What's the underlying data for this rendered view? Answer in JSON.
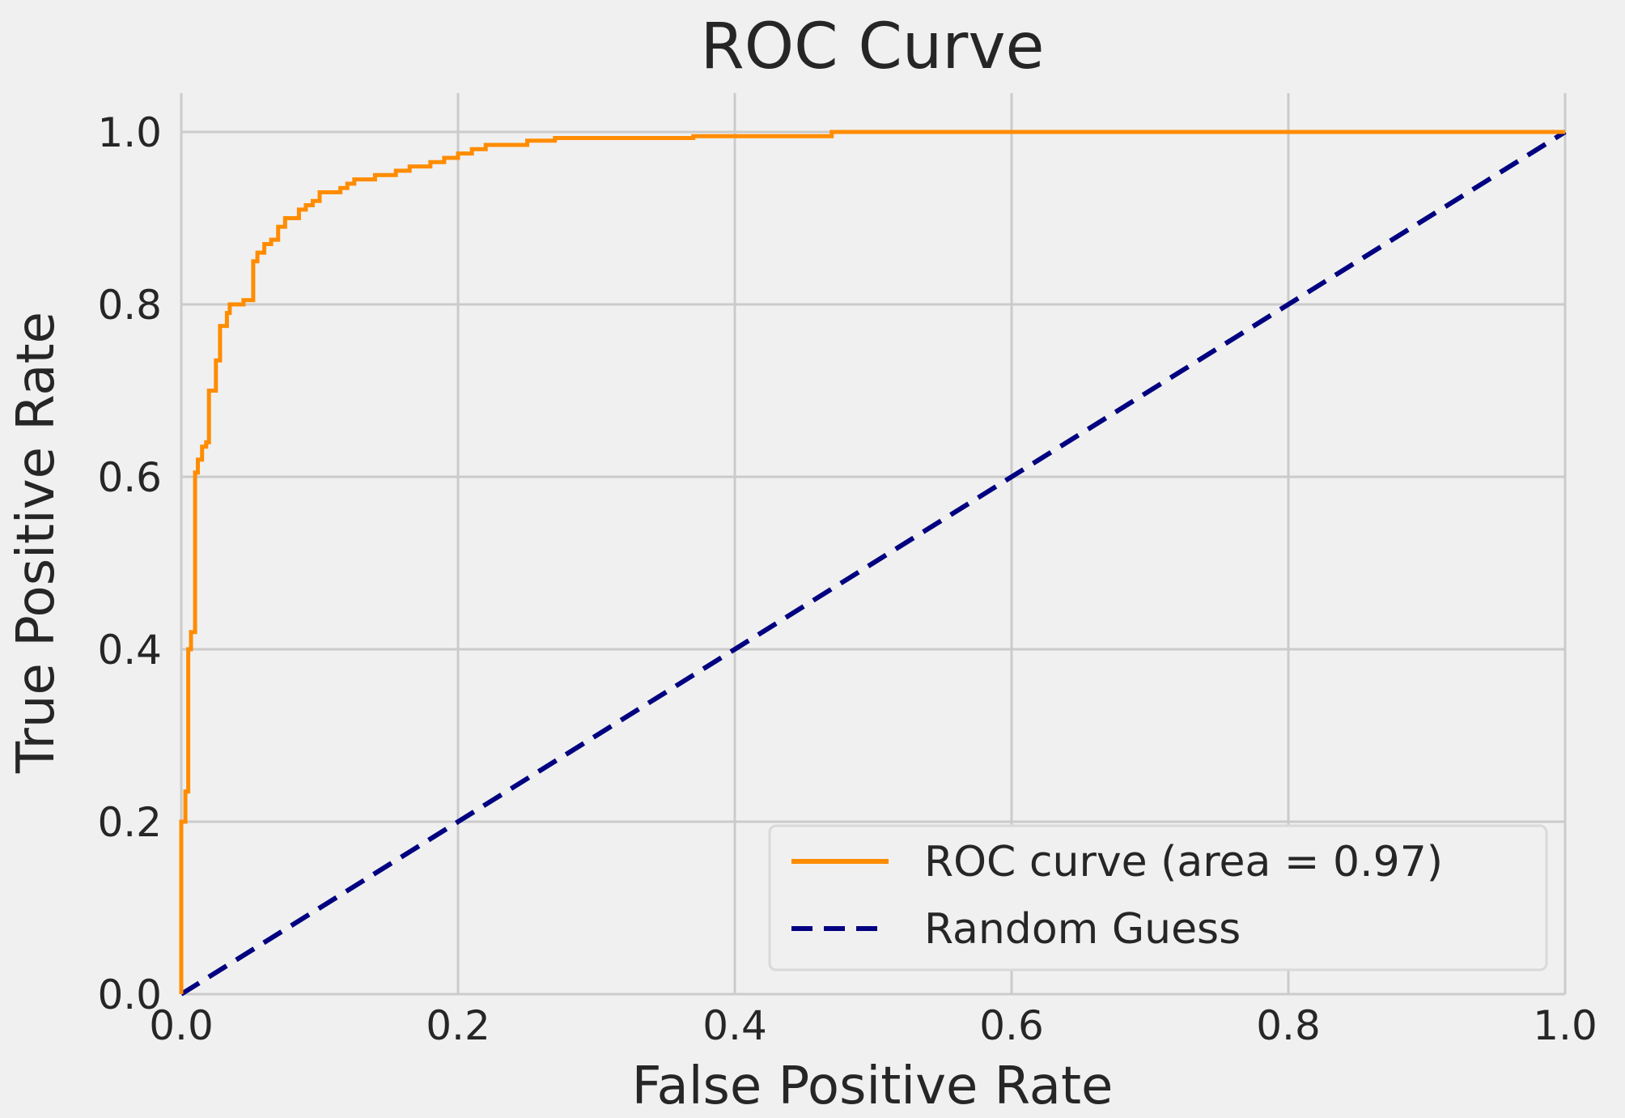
{
  "chart_data": {
    "type": "line",
    "title": "ROC Curve",
    "xlabel": "False Positive Rate",
    "ylabel": "True Positive Rate",
    "xlim": [
      0.0,
      1.0
    ],
    "ylim": [
      0.0,
      1.0
    ],
    "xticks": [
      "0.0",
      "0.2",
      "0.4",
      "0.6",
      "0.8",
      "1.0"
    ],
    "yticks": [
      "0.0",
      "0.2",
      "0.4",
      "0.6",
      "0.8",
      "1.0"
    ],
    "grid": true,
    "legend_position": "lower-right",
    "series": [
      {
        "name": "ROC curve (area = 0.97)",
        "color": "#ff8c00",
        "style": "solid",
        "x": [
          0.0,
          0.0,
          0.003,
          0.003,
          0.005,
          0.005,
          0.007,
          0.007,
          0.01,
          0.01,
          0.012,
          0.012,
          0.015,
          0.015,
          0.018,
          0.018,
          0.02,
          0.02,
          0.025,
          0.025,
          0.028,
          0.028,
          0.033,
          0.033,
          0.035,
          0.035,
          0.045,
          0.045,
          0.052,
          0.052,
          0.055,
          0.055,
          0.06,
          0.06,
          0.065,
          0.065,
          0.07,
          0.07,
          0.075,
          0.075,
          0.085,
          0.085,
          0.09,
          0.09,
          0.095,
          0.095,
          0.1,
          0.1,
          0.115,
          0.115,
          0.12,
          0.12,
          0.125,
          0.125,
          0.14,
          0.14,
          0.155,
          0.155,
          0.165,
          0.165,
          0.18,
          0.18,
          0.19,
          0.19,
          0.2,
          0.2,
          0.21,
          0.21,
          0.22,
          0.22,
          0.25,
          0.25,
          0.27,
          0.27,
          0.37,
          0.37,
          0.47,
          0.47,
          1.0
        ],
        "y": [
          0.0,
          0.2,
          0.2,
          0.235,
          0.235,
          0.4,
          0.4,
          0.42,
          0.42,
          0.605,
          0.605,
          0.62,
          0.62,
          0.635,
          0.635,
          0.64,
          0.64,
          0.7,
          0.7,
          0.735,
          0.735,
          0.775,
          0.775,
          0.79,
          0.79,
          0.8,
          0.8,
          0.805,
          0.805,
          0.85,
          0.85,
          0.86,
          0.86,
          0.87,
          0.87,
          0.875,
          0.875,
          0.89,
          0.89,
          0.9,
          0.9,
          0.91,
          0.91,
          0.915,
          0.915,
          0.92,
          0.92,
          0.93,
          0.93,
          0.935,
          0.935,
          0.94,
          0.94,
          0.945,
          0.945,
          0.95,
          0.95,
          0.955,
          0.955,
          0.96,
          0.96,
          0.965,
          0.965,
          0.97,
          0.97,
          0.975,
          0.975,
          0.98,
          0.98,
          0.985,
          0.985,
          0.99,
          0.99,
          0.993,
          0.993,
          0.995,
          0.995,
          1.0,
          1.0
        ]
      },
      {
        "name": "Random Guess",
        "color": "#000080",
        "style": "dashed",
        "x": [
          0.0,
          1.0
        ],
        "y": [
          0.0,
          1.0
        ]
      }
    ]
  }
}
